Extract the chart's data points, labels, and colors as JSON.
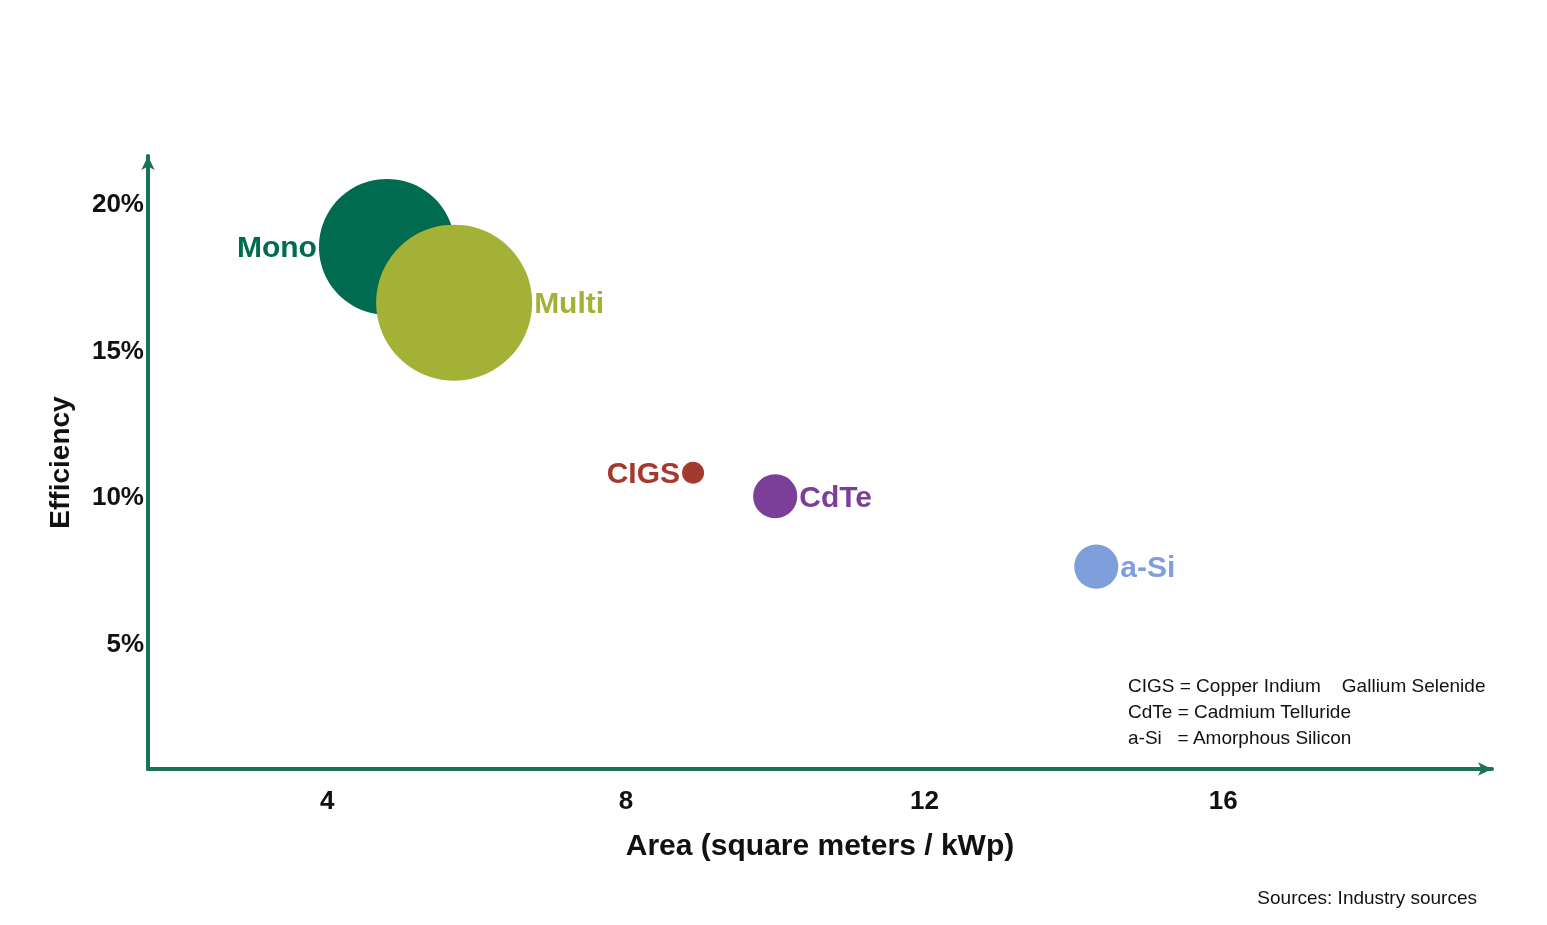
{
  "chart_data": {
    "type": "bubble",
    "xlabel": "Area (square meters / kWp)",
    "ylabel": "Efficiency",
    "xlim": [
      1.6,
      19.6
    ],
    "xticks": [
      4,
      8,
      12,
      16
    ],
    "ylim": [
      0.7,
      21.6
    ],
    "yticks": [
      {
        "value": 5,
        "label": "5%"
      },
      {
        "value": 10,
        "label": "10%"
      },
      {
        "value": 15,
        "label": "15%"
      },
      {
        "value": 20,
        "label": "20%"
      }
    ],
    "series": [
      {
        "name": "Mono",
        "color": "#006b4f",
        "x": [
          4.8
        ],
        "values": [
          18.5
        ],
        "sizes": [
          0.76
        ]
      },
      {
        "name": "Multi",
        "color": "#a3b236",
        "x": [
          5.7
        ],
        "values": [
          16.6
        ],
        "sizes": [
          1
        ]
      },
      {
        "name": "CIGS",
        "color": "#a33a2f",
        "x": [
          8.9
        ],
        "values": [
          10.8
        ],
        "sizes": [
          0.02
        ]
      },
      {
        "name": "CdTe",
        "color": "#7b3f9a",
        "x": [
          10.0
        ],
        "values": [
          10.0
        ],
        "sizes": [
          0.08
        ]
      },
      {
        "name": "a-Si",
        "color": "#7f9fdc",
        "x": [
          14.3
        ],
        "values": [
          7.6
        ],
        "sizes": [
          0.08
        ]
      }
    ],
    "annotations": [
      "CIGS = Copper Indium    Gallium Selenide",
      "CdTe = Cadmium Telluride",
      "a-Si   = Amorphous Silicon",
      "Sources: Industry sources"
    ],
    "grid": false,
    "legend": false
  }
}
